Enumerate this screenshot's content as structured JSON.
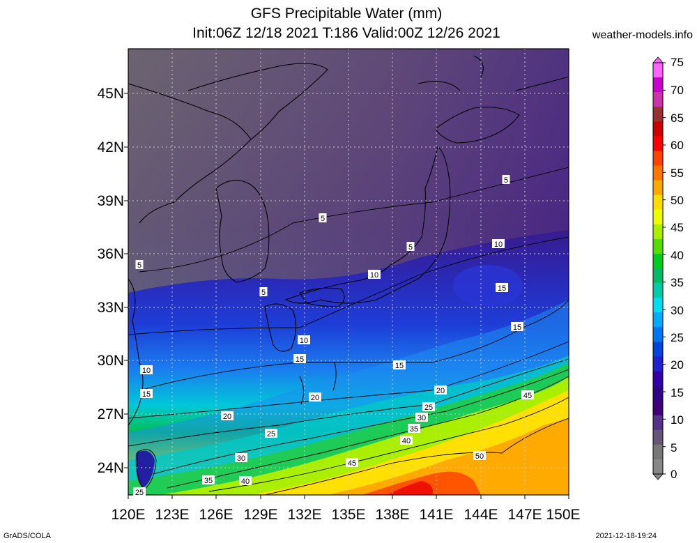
{
  "header": {
    "title": "GFS Precipitable Water (mm)",
    "subtitle": "Init:06Z 12/18 2021 T:186 Valid:00Z 12/26 2021",
    "site": "weather-models.info"
  },
  "map": {
    "lat_labels": [
      "45N",
      "42N",
      "39N",
      "36N",
      "33N",
      "30N",
      "27N",
      "24N"
    ],
    "lon_labels": [
      "120E",
      "123E",
      "126E",
      "129E",
      "132E",
      "135E",
      "138E",
      "141E",
      "144E",
      "147E",
      "150E"
    ],
    "contour_labels": [
      "5",
      "5",
      "5",
      "5",
      "5",
      "10",
      "10",
      "10",
      "10",
      "15",
      "15",
      "15",
      "15",
      "15",
      "20",
      "20",
      "20",
      "25",
      "25",
      "30",
      "35",
      "40",
      "45",
      "50",
      "30",
      "35",
      "40",
      "45",
      "25"
    ],
    "colors": {
      "land_outline": "#000000",
      "grid": "#bbbbbb",
      "background_dry": "#6a6070"
    }
  },
  "colorbar": {
    "levels": [
      "75",
      "70",
      "65",
      "60",
      "55",
      "50",
      "45",
      "40",
      "35",
      "30",
      "25",
      "20",
      "15",
      "10",
      "5",
      "0"
    ],
    "colors": [
      "#ff66ff",
      "#cc00cc",
      "#cc33aa",
      "#993333",
      "#cc0000",
      "#ff0000",
      "#ff4400",
      "#ff7700",
      "#ffaa00",
      "#ffdd00",
      "#eeff00",
      "#aaee00",
      "#55dd00",
      "#00cc22",
      "#00bb66",
      "#00ccaa",
      "#00ddee",
      "#00aaff",
      "#0077ee",
      "#0044dd",
      "#2222cc",
      "#3300aa",
      "#330088",
      "#440077",
      "#553388",
      "#665577",
      "#777777",
      "#888888"
    ]
  },
  "footer": {
    "left": "GrADS/COLA",
    "right": "2021-12-18-19:24"
  }
}
